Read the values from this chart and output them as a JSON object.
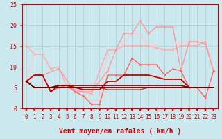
{
  "xlabel": "Vent moyen/en rafales ( km/h )",
  "xlim": [
    -0.5,
    23.5
  ],
  "ylim": [
    0,
    25
  ],
  "bg_color": "#cbe8ee",
  "grid_color": "#b0ccd4",
  "xticks": [
    0,
    1,
    2,
    3,
    4,
    5,
    6,
    7,
    8,
    9,
    10,
    11,
    12,
    13,
    14,
    15,
    16,
    17,
    18,
    19,
    20,
    21,
    22,
    23
  ],
  "yticks": [
    0,
    5,
    10,
    15,
    20,
    25
  ],
  "lines": [
    {
      "x": [
        0,
        1,
        2,
        3,
        4,
        5,
        6,
        7,
        8,
        9,
        10,
        11,
        12,
        13,
        14,
        15,
        16,
        17,
        18,
        19,
        20,
        21,
        22,
        23
      ],
      "y": [
        15,
        13,
        13,
        9.5,
        10,
        5,
        4.5,
        4,
        3.5,
        9,
        14,
        14,
        15,
        15,
        15,
        15,
        14.5,
        14,
        14,
        15,
        15,
        15,
        16,
        9
      ],
      "color": "#ffaaaa",
      "lw": 1.0,
      "marker": "D",
      "ms": 1.8,
      "zorder": 3
    },
    {
      "x": [
        0,
        1,
        2,
        3,
        4,
        5,
        6,
        7,
        8,
        9,
        10,
        11,
        12,
        13,
        14,
        15,
        16,
        17,
        18,
        19,
        20,
        21,
        22,
        23
      ],
      "y": [
        6.5,
        13,
        13,
        9.5,
        10,
        5,
        4,
        3,
        2,
        2,
        14,
        14,
        15.5,
        18,
        18,
        15,
        15,
        14,
        14,
        16,
        16,
        16,
        16,
        9
      ],
      "color": "#ffcccc",
      "lw": 1.0,
      "marker": null,
      "ms": 0,
      "zorder": 2
    },
    {
      "x": [
        0,
        1,
        2,
        3,
        4,
        5,
        6,
        7,
        8,
        9,
        10,
        11,
        12,
        13,
        14,
        15,
        16,
        17,
        18,
        19,
        20,
        21,
        22,
        23
      ],
      "y": [
        6.5,
        8,
        8,
        4,
        5,
        5.5,
        4,
        3,
        1,
        1,
        8,
        8,
        8,
        12,
        10.5,
        10.5,
        10.5,
        8,
        9.5,
        9,
        5,
        5,
        2.5,
        9
      ],
      "color": "#ff6666",
      "lw": 1.0,
      "marker": "D",
      "ms": 1.8,
      "zorder": 4
    },
    {
      "x": [
        0,
        1,
        2,
        4,
        6,
        8,
        10,
        11,
        12,
        13,
        14,
        15,
        16,
        17,
        18,
        19,
        20,
        21,
        22,
        23
      ],
      "y": [
        6.5,
        8,
        8,
        9.5,
        4,
        4,
        9,
        14,
        18,
        18,
        21,
        18,
        19.5,
        19.5,
        19.5,
        9,
        16,
        16,
        15.5,
        9
      ],
      "color": "#ff9999",
      "lw": 1.0,
      "marker": "D",
      "ms": 1.8,
      "zorder": 3
    },
    {
      "x": [
        0,
        1,
        2,
        3,
        4,
        5,
        6,
        7,
        8,
        9,
        10,
        11,
        12,
        13,
        14,
        15,
        16,
        17,
        18,
        19,
        20,
        21,
        22,
        23
      ],
      "y": [
        6.5,
        8,
        8,
        4,
        5.5,
        5.5,
        5,
        4.5,
        4.5,
        4.5,
        6.5,
        6.5,
        8,
        8,
        8,
        8,
        7.5,
        7,
        7,
        7,
        5,
        5,
        5,
        5
      ],
      "color": "#cc0000",
      "lw": 1.3,
      "marker": null,
      "ms": 0,
      "zorder": 5
    },
    {
      "x": [
        0,
        1,
        2,
        3,
        4,
        5,
        6,
        7,
        8,
        9,
        10,
        11,
        12,
        13,
        14,
        15,
        16,
        17,
        18,
        19,
        20,
        21,
        22,
        23
      ],
      "y": [
        6.5,
        5,
        5,
        5,
        5.5,
        5.5,
        5.5,
        5.5,
        5.5,
        5.5,
        5.5,
        5.5,
        5.5,
        5.5,
        5.5,
        5.5,
        5.5,
        5.5,
        5.5,
        5.5,
        5,
        5,
        5,
        5
      ],
      "color": "#990000",
      "lw": 1.3,
      "marker": null,
      "ms": 0,
      "zorder": 5
    },
    {
      "x": [
        0,
        1,
        2,
        3,
        4,
        5,
        6,
        7,
        8,
        9,
        10,
        11,
        12,
        13,
        14,
        15,
        16,
        17,
        18,
        19,
        20,
        21,
        22,
        23
      ],
      "y": [
        6.5,
        5,
        5,
        5,
        5,
        5,
        5,
        5,
        5,
        5,
        5,
        5,
        5,
        5,
        5,
        5,
        5,
        5,
        5,
        5,
        5,
        5,
        5,
        5
      ],
      "color": "#660000",
      "lw": 1.3,
      "marker": null,
      "ms": 0,
      "zorder": 5
    },
    {
      "x": [
        0,
        1,
        2,
        3,
        4,
        5,
        6,
        7,
        8,
        9,
        10,
        11,
        12,
        13,
        14,
        15,
        16,
        17,
        18,
        19,
        20,
        21,
        22,
        23
      ],
      "y": [
        6.5,
        5,
        5,
        5,
        5,
        5,
        5,
        5,
        5,
        5,
        4.5,
        4.5,
        4.5,
        4.5,
        4.5,
        5,
        5,
        5,
        5,
        5,
        5,
        5,
        5,
        5
      ],
      "color": "#cc3333",
      "lw": 1.0,
      "marker": null,
      "ms": 0,
      "zorder": 4
    }
  ],
  "arrow_color": "#cc0000",
  "xlabel_color": "#cc0000",
  "xlabel_fontsize": 7,
  "tick_fontsize": 5.5,
  "tick_color": "#cc0000"
}
